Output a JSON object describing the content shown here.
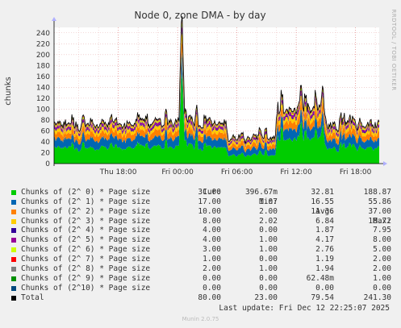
{
  "chart_data": {
    "type": "area",
    "stacked": true,
    "title": "Node 0, zone DMA - by day",
    "ylabel": "chunks",
    "side_label": "RRDTOOL / TOBI OETIKER",
    "ylim": [
      0,
      250
    ],
    "yticks": [
      0,
      20,
      40,
      60,
      80,
      100,
      120,
      140,
      160,
      180,
      200,
      220,
      240
    ],
    "xticks": [
      "Thu 18:00",
      "Fri 00:00",
      "Fri 06:00",
      "Fri 12:00",
      "Fri 18:00"
    ],
    "x_range_hours": [
      -30.5,
      2.4
    ],
    "xtick_hours": [
      -24,
      -18,
      -12,
      -6,
      0
    ],
    "grid": true,
    "series": [
      {
        "name": "Chunks of (2^ 0) * Page size",
        "color": "#00cc00",
        "cur": "31.00",
        "min": "396.67m",
        "avg": "32.81",
        "max": "188.87"
      },
      {
        "name": "Chunks of (2^ 1) * Page size",
        "color": "#0066b3",
        "cur": "17.00",
        "min": "1.07",
        "avg": "16.55",
        "max": "55.86"
      },
      {
        "name": "Chunks of (2^ 2) * Page size",
        "color": "#ff8000",
        "cur": "10.00",
        "min": "2.00",
        "avg": "11.36",
        "max": "37.00"
      },
      {
        "name": "Chunks of (2^ 3) * Page size",
        "color": "#ffcc00",
        "cur": "8.00",
        "min": "2.02",
        "avg": "6.84",
        "max": "18.72"
      },
      {
        "name": "Chunks of (2^ 4) * Page size",
        "color": "#330099",
        "cur": "4.00",
        "min": "0.00",
        "avg": "1.87",
        "max": "7.95"
      },
      {
        "name": "Chunks of (2^ 5) * Page size",
        "color": "#990099",
        "cur": "4.00",
        "min": "1.00",
        "avg": "4.17",
        "max": "8.00"
      },
      {
        "name": "Chunks of (2^ 6) * Page size",
        "color": "#ccff00",
        "cur": "3.00",
        "min": "1.00",
        "avg": "2.76",
        "max": "5.00"
      },
      {
        "name": "Chunks of (2^ 7) * Page size",
        "color": "#ff0000",
        "cur": "1.00",
        "min": "0.00",
        "avg": "1.19",
        "max": "2.00"
      },
      {
        "name": "Chunks of (2^ 8) * Page size",
        "color": "#808080",
        "cur": "2.00",
        "min": "1.00",
        "avg": "1.94",
        "max": "2.00"
      },
      {
        "name": "Chunks of (2^ 9) * Page size",
        "color": "#008f00",
        "cur": "0.00",
        "min": "0.00",
        "avg": "62.48m",
        "max": "1.00"
      },
      {
        "name": "Chunks of (2^10) * Page size",
        "color": "#00487d",
        "cur": "0.00",
        "min": "0.00",
        "avg": "0.00",
        "max": "0.00"
      },
      {
        "name": "Total",
        "color": "#000000",
        "cur": "80.00",
        "min": "23.00",
        "avg": "79.54",
        "max": "241.30"
      }
    ]
  },
  "legend_header": {
    "cur": "Cur:",
    "min": "Min:",
    "avg": "Avg:",
    "max": "Max:"
  },
  "last_update": "Last update: Fri Dec 12 22:25:07 2025",
  "footer": "Munin 2.0.75"
}
